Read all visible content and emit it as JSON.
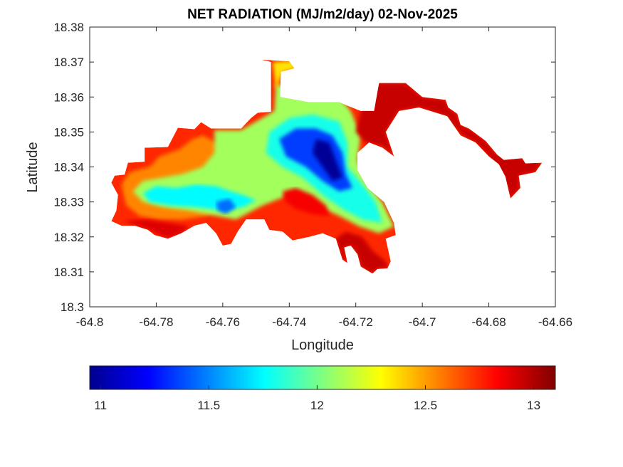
{
  "chart_data": {
    "type": "heatmap",
    "subtype": "filled-contour-map",
    "title": "NET RADIATION (MJ/m2/day) 02-Nov-2025",
    "xlabel": "Longitude",
    "ylabel": "Latitude",
    "xlim": [
      -64.8,
      -64.66
    ],
    "ylim": [
      18.3,
      18.38
    ],
    "xticks": [
      -64.8,
      -64.78,
      -64.76,
      -64.74,
      -64.72,
      -64.7,
      -64.68,
      -64.66
    ],
    "xtick_labels": [
      "-64.8",
      "-64.78",
      "-64.76",
      "-64.74",
      "-64.72",
      "-64.7",
      "-64.68",
      "-64.66"
    ],
    "yticks": [
      18.3,
      18.31,
      18.32,
      18.33,
      18.34,
      18.35,
      18.36,
      18.37,
      18.38
    ],
    "ytick_labels": [
      "18.3",
      "18.31",
      "18.32",
      "18.33",
      "18.34",
      "18.35",
      "18.36",
      "18.37",
      "18.38"
    ],
    "grid": false,
    "colormap": "jet",
    "colorbar": {
      "location": "bottom",
      "clim": [
        10.95,
        13.1
      ],
      "ticks": [
        11,
        11.5,
        12,
        12.5,
        13
      ],
      "tick_labels": [
        "11",
        "11.5",
        "12",
        "12.5",
        "13"
      ]
    },
    "regions": [
      {
        "name": "island-outline",
        "value": 12.75,
        "polygon": [
          [
            -64.7935,
            18.3355
          ],
          [
            -64.7925,
            18.3375
          ],
          [
            -64.7895,
            18.3378
          ],
          [
            -64.7885,
            18.3412
          ],
          [
            -64.7835,
            18.3415
          ],
          [
            -64.7835,
            18.3455
          ],
          [
            -64.7765,
            18.3457
          ],
          [
            -64.7735,
            18.3512
          ],
          [
            -64.7685,
            18.3508
          ],
          [
            -64.7665,
            18.3528
          ],
          [
            -64.7635,
            18.351
          ],
          [
            -64.7545,
            18.351
          ],
          [
            -64.7515,
            18.354
          ],
          [
            -64.7495,
            18.3555
          ],
          [
            -64.7455,
            18.3558
          ],
          [
            -64.7455,
            18.37
          ],
          [
            -64.7485,
            18.3707
          ],
          [
            -64.74,
            18.3702
          ],
          [
            -64.7385,
            18.3682
          ],
          [
            -64.7425,
            18.3672
          ],
          [
            -64.7428,
            18.36
          ],
          [
            -64.734,
            18.3585
          ],
          [
            -64.725,
            18.3585
          ],
          [
            -64.7185,
            18.356
          ],
          [
            -64.7145,
            18.356
          ],
          [
            -64.713,
            18.364
          ],
          [
            -64.705,
            18.364
          ],
          [
            -64.7,
            18.36
          ],
          [
            -64.693,
            18.3592
          ],
          [
            -64.6922,
            18.357
          ],
          [
            -64.6895,
            18.3552
          ],
          [
            -64.6885,
            18.352
          ],
          [
            -64.686,
            18.351
          ],
          [
            -64.681,
            18.3475
          ],
          [
            -64.6775,
            18.3435
          ],
          [
            -64.6755,
            18.342
          ],
          [
            -64.67,
            18.3425
          ],
          [
            -64.669,
            18.341
          ],
          [
            -64.664,
            18.3412
          ],
          [
            -64.666,
            18.3385
          ],
          [
            -64.671,
            18.3375
          ],
          [
            -64.6705,
            18.334
          ],
          [
            -64.6735,
            18.331
          ],
          [
            -64.675,
            18.3372
          ],
          [
            -64.677,
            18.3408
          ],
          [
            -64.68,
            18.343
          ],
          [
            -64.684,
            18.347
          ],
          [
            -64.6885,
            18.349
          ],
          [
            -64.6925,
            18.3545
          ],
          [
            -64.701,
            18.357
          ],
          [
            -64.707,
            18.356
          ],
          [
            -64.711,
            18.35
          ],
          [
            -64.7085,
            18.343
          ],
          [
            -64.712,
            18.3455
          ],
          [
            -64.716,
            18.347
          ],
          [
            -64.7195,
            18.344
          ],
          [
            -64.7195,
            18.339
          ],
          [
            -64.7165,
            18.334
          ],
          [
            -64.7115,
            18.33
          ],
          [
            -64.7085,
            18.324
          ],
          [
            -64.708,
            18.3205
          ],
          [
            -64.711,
            18.3195
          ],
          [
            -64.7095,
            18.313
          ],
          [
            -64.7105,
            18.311
          ],
          [
            -64.7135,
            18.3108
          ],
          [
            -64.715,
            18.3095
          ],
          [
            -64.7185,
            18.3115
          ],
          [
            -64.7195,
            18.315
          ],
          [
            -64.7215,
            18.3175
          ],
          [
            -64.7235,
            18.317
          ],
          [
            -64.7225,
            18.3125
          ],
          [
            -64.724,
            18.3135
          ],
          [
            -64.726,
            18.3195
          ],
          [
            -64.73,
            18.321
          ],
          [
            -64.734,
            18.32
          ],
          [
            -64.739,
            18.319
          ],
          [
            -64.742,
            18.3215
          ],
          [
            -64.746,
            18.322
          ],
          [
            -64.7475,
            18.325
          ],
          [
            -64.753,
            18.325
          ],
          [
            -64.7555,
            18.3215
          ],
          [
            -64.7575,
            18.318
          ],
          [
            -64.76,
            18.3175
          ],
          [
            -64.762,
            18.321
          ],
          [
            -64.765,
            18.324
          ],
          [
            -64.7685,
            18.3232
          ],
          [
            -64.7725,
            18.321
          ],
          [
            -64.7765,
            18.3195
          ],
          [
            -64.7805,
            18.3205
          ],
          [
            -64.7825,
            18.322
          ],
          [
            -64.7865,
            18.3232
          ],
          [
            -64.7905,
            18.3232
          ],
          [
            -64.7935,
            18.3245
          ],
          [
            -64.792,
            18.3275
          ],
          [
            -64.7915,
            18.332
          ]
        ]
      },
      {
        "name": "west-orange-band",
        "value": 12.55,
        "polygon": [
          [
            -64.7905,
            18.335
          ],
          [
            -64.788,
            18.3385
          ],
          [
            -64.782,
            18.34
          ],
          [
            -64.779,
            18.343
          ],
          [
            -64.773,
            18.345
          ],
          [
            -64.769,
            18.348
          ],
          [
            -64.766,
            18.349
          ],
          [
            -64.762,
            18.347
          ],
          [
            -64.756,
            18.344
          ],
          [
            -64.754,
            18.339
          ],
          [
            -64.756,
            18.334
          ],
          [
            -64.76,
            18.329
          ],
          [
            -64.765,
            18.326
          ],
          [
            -64.772,
            18.325
          ],
          [
            -64.779,
            18.325
          ],
          [
            -64.785,
            18.326
          ],
          [
            -64.789,
            18.329
          ]
        ]
      },
      {
        "name": "central-green",
        "value": 12.1,
        "polygon": [
          [
            -64.787,
            18.333
          ],
          [
            -64.784,
            18.336
          ],
          [
            -64.778,
            18.337
          ],
          [
            -64.772,
            18.338
          ],
          [
            -64.766,
            18.34
          ],
          [
            -64.7625,
            18.344
          ],
          [
            -64.7625,
            18.3505
          ],
          [
            -64.7545,
            18.3505
          ],
          [
            -64.7445,
            18.356
          ],
          [
            -64.744,
            18.364
          ],
          [
            -64.74,
            18.362
          ],
          [
            -64.733,
            18.36
          ],
          [
            -64.725,
            18.36
          ],
          [
            -64.7215,
            18.356
          ],
          [
            -64.7185,
            18.349
          ],
          [
            -64.7195,
            18.342
          ],
          [
            -64.717,
            18.336
          ],
          [
            -64.712,
            18.33
          ],
          [
            -64.7085,
            18.323
          ],
          [
            -64.713,
            18.321
          ],
          [
            -64.719,
            18.323
          ],
          [
            -64.725,
            18.326
          ],
          [
            -64.734,
            18.33
          ],
          [
            -64.74,
            18.332
          ],
          [
            -64.748,
            18.329
          ],
          [
            -64.752,
            18.327
          ],
          [
            -64.756,
            18.325
          ],
          [
            -64.762,
            18.326
          ],
          [
            -64.77,
            18.3275
          ],
          [
            -64.778,
            18.3285
          ],
          [
            -64.784,
            18.33
          ]
        ]
      },
      {
        "name": "west-cyan-trough",
        "value": 11.75,
        "polygon": [
          [
            -64.784,
            18.3325
          ],
          [
            -64.78,
            18.3345
          ],
          [
            -64.774,
            18.334
          ],
          [
            -64.768,
            18.335
          ],
          [
            -64.762,
            18.3345
          ],
          [
            -64.7575,
            18.333
          ],
          [
            -64.754,
            18.332
          ],
          [
            -64.75,
            18.3305
          ],
          [
            -64.754,
            18.3285
          ],
          [
            -64.76,
            18.3275
          ],
          [
            -64.768,
            18.3285
          ],
          [
            -64.776,
            18.329
          ],
          [
            -64.782,
            18.33
          ]
        ]
      },
      {
        "name": "west-blue-spot",
        "value": 11.45,
        "polygon": [
          [
            -64.762,
            18.33
          ],
          [
            -64.758,
            18.331
          ],
          [
            -64.756,
            18.3285
          ],
          [
            -64.759,
            18.3265
          ],
          [
            -64.7615,
            18.3275
          ]
        ]
      },
      {
        "name": "north-yellow-lobe",
        "value": 12.35,
        "polygon": [
          [
            -64.745,
            18.37
          ],
          [
            -64.7385,
            18.3705
          ],
          [
            -64.738,
            18.368
          ],
          [
            -64.742,
            18.367
          ],
          [
            -64.744,
            18.362
          ]
        ]
      },
      {
        "name": "central-cyan-band",
        "value": 11.8,
        "polygon": [
          [
            -64.746,
            18.35
          ],
          [
            -64.74,
            18.354
          ],
          [
            -64.733,
            18.355
          ],
          [
            -64.725,
            18.353
          ],
          [
            -64.7225,
            18.347
          ],
          [
            -64.7225,
            18.34
          ],
          [
            -64.718,
            18.335
          ],
          [
            -64.714,
            18.33
          ],
          [
            -64.712,
            18.324
          ],
          [
            -64.718,
            18.325
          ],
          [
            -64.724,
            18.328
          ],
          [
            -64.73,
            18.332
          ],
          [
            -64.736,
            18.337
          ],
          [
            -64.742,
            18.34
          ],
          [
            -64.747,
            18.344
          ]
        ]
      },
      {
        "name": "central-blue-core",
        "value": 11.35,
        "polygon": [
          [
            -64.743,
            18.348
          ],
          [
            -64.738,
            18.351
          ],
          [
            -64.732,
            18.351
          ],
          [
            -64.727,
            18.349
          ],
          [
            -64.724,
            18.344
          ],
          [
            -64.723,
            18.338
          ],
          [
            -64.721,
            18.334
          ],
          [
            -64.725,
            18.333
          ],
          [
            -64.73,
            18.336
          ],
          [
            -64.735,
            18.34
          ],
          [
            -64.741,
            18.343
          ]
        ]
      },
      {
        "name": "central-dark-blue-minimum",
        "value": 11.0,
        "polygon": [
          [
            -64.732,
            18.348
          ],
          [
            -64.728,
            18.347
          ],
          [
            -64.726,
            18.342
          ],
          [
            -64.724,
            18.337
          ],
          [
            -64.727,
            18.336
          ],
          [
            -64.73,
            18.34
          ],
          [
            -64.733,
            18.344
          ]
        ]
      },
      {
        "name": "central-red-hotspot",
        "value": 12.85,
        "polygon": [
          [
            -64.742,
            18.333
          ],
          [
            -64.738,
            18.334
          ],
          [
            -64.733,
            18.332
          ],
          [
            -64.729,
            18.329
          ],
          [
            -64.728,
            18.326
          ],
          [
            -64.733,
            18.3265
          ],
          [
            -64.738,
            18.328
          ],
          [
            -64.7415,
            18.3305
          ]
        ]
      },
      {
        "name": "northeast-red-block",
        "value": 12.95,
        "polygon": [
          [
            -64.714,
            18.364
          ],
          [
            -64.705,
            18.364
          ],
          [
            -64.7,
            18.36
          ],
          [
            -64.693,
            18.3592
          ],
          [
            -64.6922,
            18.357
          ],
          [
            -64.6895,
            18.3552
          ],
          [
            -64.6885,
            18.352
          ],
          [
            -64.685,
            18.3505
          ],
          [
            -64.681,
            18.3475
          ],
          [
            -64.6775,
            18.3435
          ],
          [
            -64.67,
            18.3425
          ],
          [
            -64.664,
            18.3412
          ],
          [
            -64.666,
            18.3385
          ],
          [
            -64.671,
            18.3375
          ],
          [
            -64.6705,
            18.334
          ],
          [
            -64.6735,
            18.331
          ],
          [
            -64.676,
            18.338
          ],
          [
            -64.68,
            18.343
          ],
          [
            -64.684,
            18.347
          ],
          [
            -64.688,
            18.349
          ],
          [
            -64.693,
            18.3545
          ],
          [
            -64.701,
            18.357
          ],
          [
            -64.707,
            18.356
          ],
          [
            -64.711,
            18.35
          ],
          [
            -64.7085,
            18.343
          ],
          [
            -64.712,
            18.346
          ],
          [
            -64.717,
            18.347
          ],
          [
            -64.72,
            18.35
          ],
          [
            -64.7185,
            18.356
          ]
        ]
      },
      {
        "name": "south-red-fringe",
        "value": 12.95,
        "polygon": [
          [
            -64.718,
            18.32
          ],
          [
            -64.715,
            18.316
          ],
          [
            -64.711,
            18.313
          ],
          [
            -64.71,
            18.311
          ],
          [
            -64.7135,
            18.3108
          ],
          [
            -64.715,
            18.3095
          ],
          [
            -64.7185,
            18.3115
          ],
          [
            -64.7195,
            18.315
          ],
          [
            -64.7215,
            18.3175
          ],
          [
            -64.7235,
            18.317
          ],
          [
            -64.7225,
            18.3125
          ],
          [
            -64.724,
            18.3135
          ],
          [
            -64.726,
            18.3195
          ],
          [
            -64.723,
            18.3215
          ]
        ]
      },
      {
        "name": "southwest-red-fringe",
        "value": 12.9,
        "polygon": [
          [
            -64.79,
            18.3245
          ],
          [
            -64.786,
            18.3232
          ],
          [
            -64.782,
            18.322
          ],
          [
            -64.779,
            18.3205
          ],
          [
            -64.7765,
            18.3195
          ],
          [
            -64.7725,
            18.321
          ],
          [
            -64.77,
            18.323
          ],
          [
            -64.776,
            18.324
          ],
          [
            -64.783,
            18.325
          ]
        ]
      }
    ]
  }
}
